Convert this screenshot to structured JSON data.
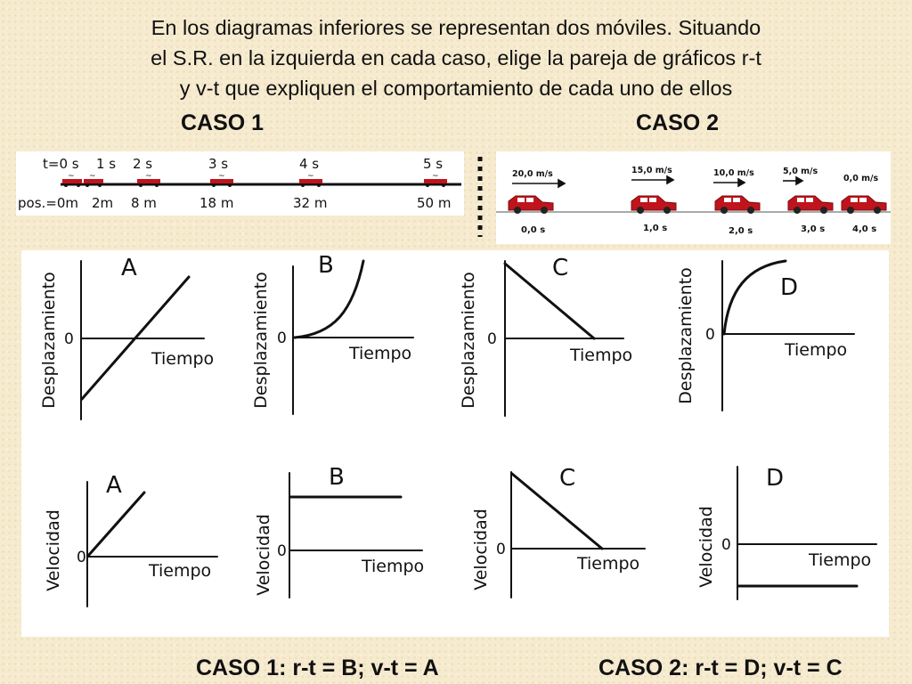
{
  "title_lines": [
    "En los diagramas inferiores se representan dos móviles. Situando",
    "el S.R. en la izquierda en cada caso, elige la pareja de gráficos r-t",
    "y v-t que expliquen el comportamiento de cada uno de ellos"
  ],
  "case1_label": "CASO 1",
  "case2_label": "CASO 2",
  "case1_strip": {
    "times": [
      "t=0 s",
      "1 s",
      "2 s",
      "3 s",
      "4 s",
      "5 s"
    ],
    "positions": [
      "pos.=0m",
      "2m",
      "8 m",
      "18 m",
      "32 m",
      "50 m"
    ]
  },
  "case2_strip": {
    "speeds": [
      "20,0 m/s",
      "15,0 m/s",
      "10,0 m/s",
      "5,0 m/s",
      "0,0 m/s"
    ],
    "times": [
      "0,0 s",
      "1,0 s",
      "2,0 s",
      "3,0 s",
      "4,0 s"
    ]
  },
  "graphs": {
    "zero": "0",
    "time_axis": "Tiempo",
    "displacement_axis": "Desplazamiento",
    "velocity_axis": "Velocidad",
    "rt": [
      {
        "letter": "A"
      },
      {
        "letter": "B"
      },
      {
        "letter": "C"
      },
      {
        "letter": "D"
      }
    ],
    "vt": [
      {
        "letter": "A"
      },
      {
        "letter": "B"
      },
      {
        "letter": "C"
      },
      {
        "letter": "D"
      }
    ]
  },
  "answers": {
    "case1": "CASO 1: r-t = B; v-t = A",
    "case2": "CASO 2: r-t = D;  v-t = C"
  },
  "colors": {
    "background": "#f6ebcf",
    "car_red": "#c0141c",
    "ink": "#111111"
  }
}
